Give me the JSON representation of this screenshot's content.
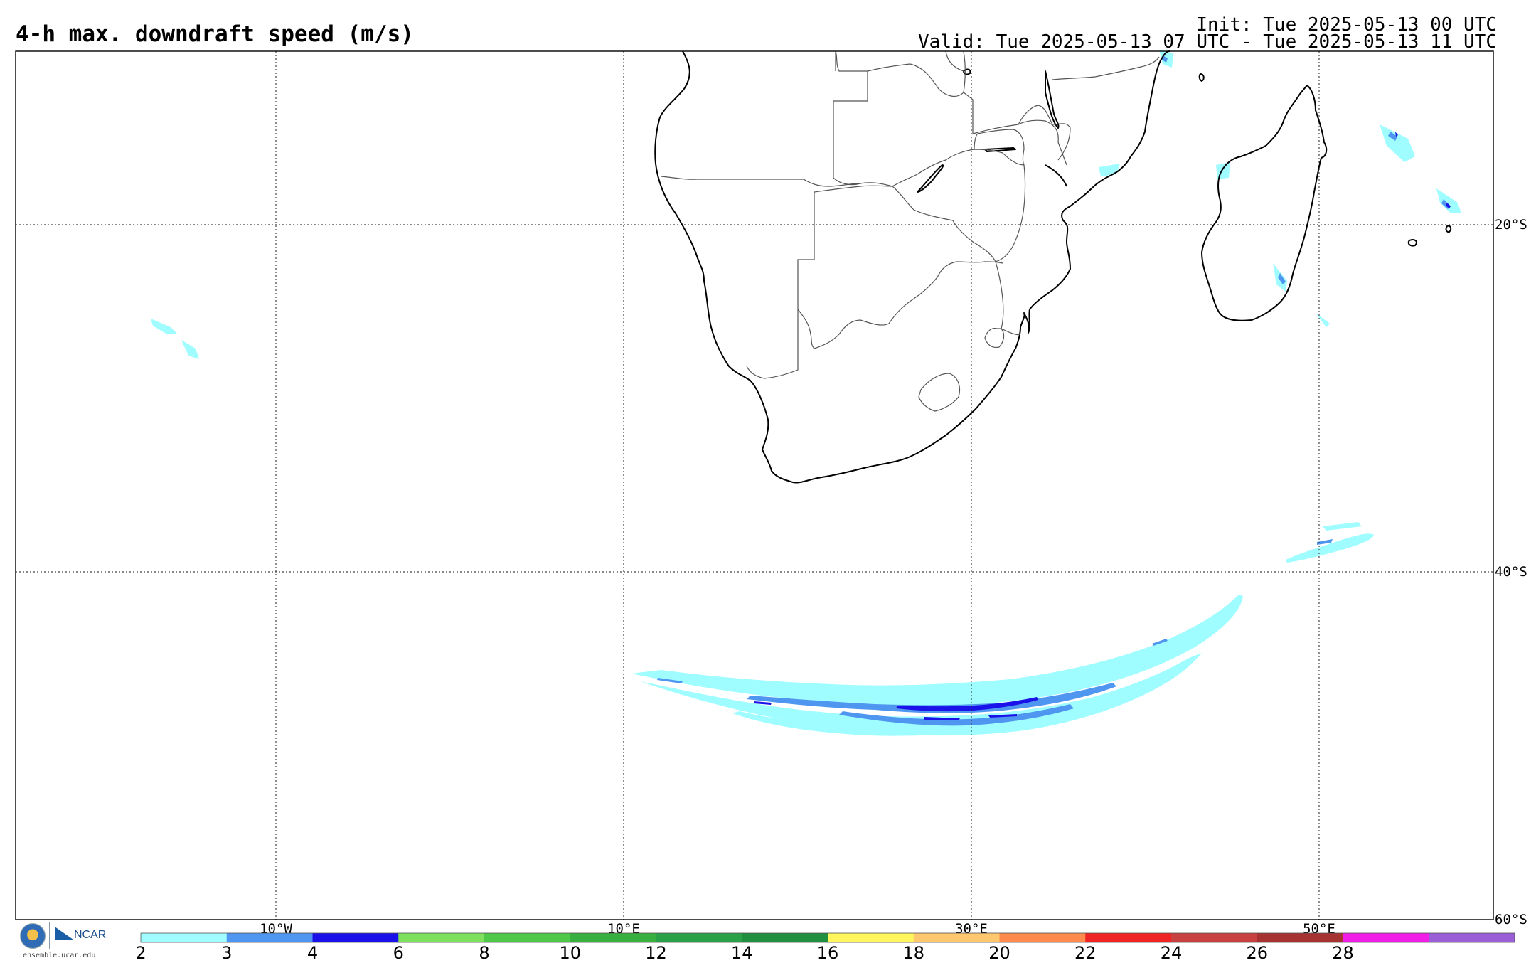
{
  "header": {
    "title": "4-h max. downdraft speed (m/s)",
    "init": "Init: Tue 2025-05-13 00 UTC",
    "valid": "Valid: Tue 2025-05-13 07 UTC - Tue 2025-05-13 11 UTC"
  },
  "map": {
    "projection": "cylindrical",
    "lon_range": [
      -25,
      60
    ],
    "lat_range": [
      -60,
      -10
    ],
    "meridian_labels": [
      "10°W",
      "10°E",
      "30°E",
      "50°E"
    ],
    "parallel_labels": [
      "20°S",
      "40°S",
      "60°S"
    ]
  },
  "colorbar": {
    "labels": [
      "2",
      "3",
      "4",
      "6",
      "8",
      "10",
      "12",
      "14",
      "16",
      "18",
      "20",
      "22",
      "24",
      "26",
      "28"
    ],
    "colors": [
      "#9ffcff",
      "#4f96f0",
      "#1a12e8",
      "#7fe05e",
      "#4fc84a",
      "#38b040",
      "#2aa048",
      "#209040",
      "#fff55c",
      "#ffc86e",
      "#ff8a4e",
      "#f02424",
      "#c84040",
      "#a63232",
      "#f01ee6",
      "#9a5ed6"
    ]
  },
  "logos": {
    "nsf_icon": "nsf-logo",
    "ncar_label": "NCAR",
    "website": "ensemble.ucar.edu"
  }
}
